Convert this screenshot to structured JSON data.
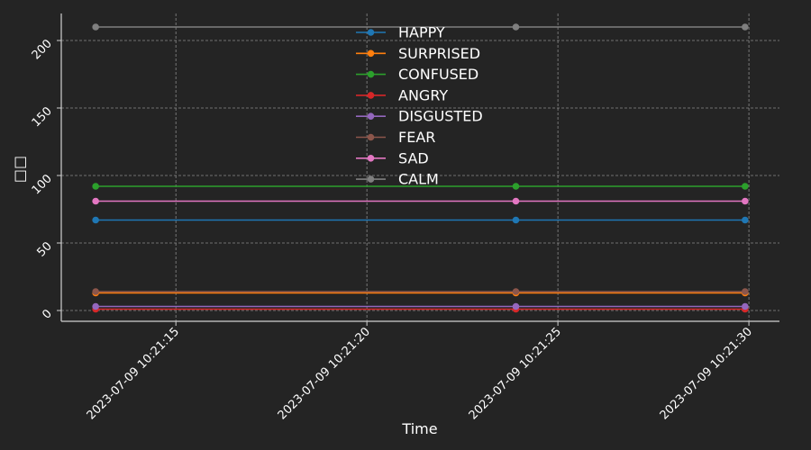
{
  "chart_data": {
    "type": "line",
    "xlabel": "Time",
    "ylabel": "□□",
    "x": [
      "2023-07-09 10:21:12.9",
      "2023-07-09 10:21:23.9",
      "2023-07-09 10:21:29.9"
    ],
    "x_ticks": [
      "2023-07-09 10:21:15",
      "2023-07-09 10:21:20",
      "2023-07-09 10:21:25",
      "2023-07-09 10:21:30"
    ],
    "xlim": [
      "2023-07-09 10:21:12.0",
      "2023-07-09 10:21:30.8"
    ],
    "y_ticks": [
      0,
      50,
      100,
      150,
      200
    ],
    "ylim": [
      -8,
      220
    ],
    "grid": true,
    "legend_position": "top-center",
    "series": [
      {
        "name": "HAPPY",
        "color": "#1f77b4",
        "values": [
          67,
          67,
          67
        ]
      },
      {
        "name": "SURPRISED",
        "color": "#ff7f0e",
        "values": [
          13,
          13,
          13
        ]
      },
      {
        "name": "CONFUSED",
        "color": "#2ca02c",
        "values": [
          92,
          92,
          92
        ]
      },
      {
        "name": "ANGRY",
        "color": "#d62728",
        "values": [
          1,
          1,
          1
        ]
      },
      {
        "name": "DISGUSTED",
        "color": "#9467bd",
        "values": [
          3,
          3,
          3
        ]
      },
      {
        "name": "FEAR",
        "color": "#8c564b",
        "values": [
          14,
          14,
          14
        ]
      },
      {
        "name": "SAD",
        "color": "#e377c2",
        "values": [
          81,
          81,
          81
        ]
      },
      {
        "name": "CALM",
        "color": "#7f7f7f",
        "values": [
          210,
          210,
          210
        ]
      }
    ]
  }
}
